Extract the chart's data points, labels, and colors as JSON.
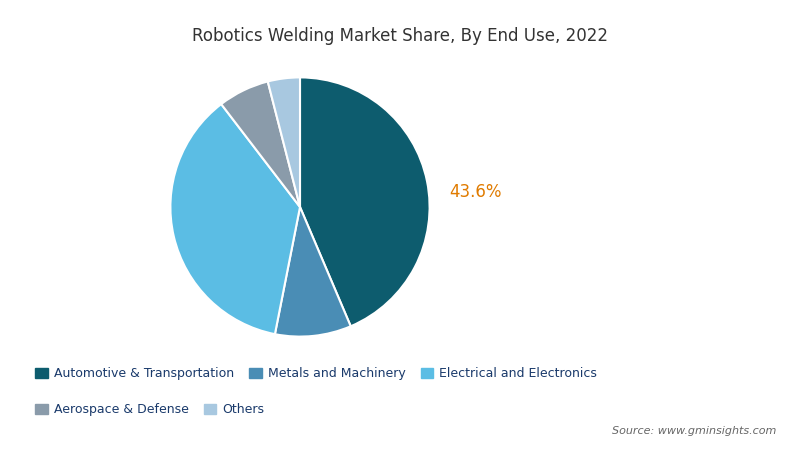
{
  "title": "Robotics Welding Market Share, By End Use, 2022",
  "title_color": "#333333",
  "background_color": "#ffffff",
  "labels": [
    "Automotive & Transportation",
    "Metals and Machinery",
    "Electrical and Electronics",
    "Aerospace & Defense",
    "Others"
  ],
  "values": [
    43.6,
    9.5,
    36.5,
    6.4,
    4.0
  ],
  "colors": [
    "#0d5c6e",
    "#4a8db5",
    "#5bbde4",
    "#8a9baa",
    "#a8c8e0"
  ],
  "annotation_label": "43.6%",
  "annotation_color": "#e07b00",
  "source_text": "Source: www.gminsights.com",
  "start_angle": 90,
  "figsize": [
    8.0,
    4.5
  ],
  "dpi": 100,
  "legend_label_color": "#1a3a6b",
  "source_color": "#666666"
}
